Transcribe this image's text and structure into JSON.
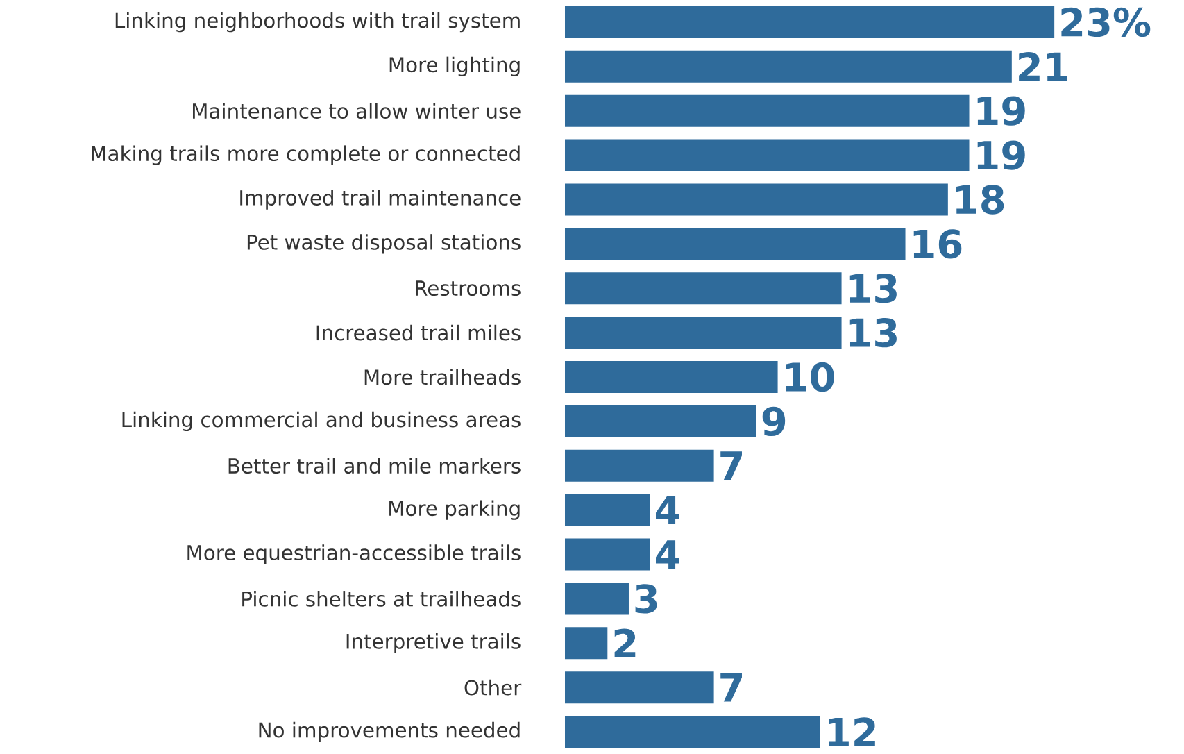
{
  "chart_data": {
    "type": "bar",
    "orientation": "horizontal",
    "categories": [
      "Linking neighborhoods with trail system",
      "More lighting",
      "Maintenance to allow winter use",
      "Making trails more complete or connected",
      "Improved trail maintenance",
      "Pet waste disposal stations",
      "Restrooms",
      "Increased trail miles",
      "More trailheads",
      "Linking commercial and business areas",
      "Better trail and mile markers",
      "More parking",
      "More equestrian-accessible trails",
      "Picnic shelters at trailheads",
      "Interpretive trails",
      "Other",
      "No improvements needed"
    ],
    "values": [
      23,
      21,
      19,
      19,
      18,
      16,
      13,
      13,
      10,
      9,
      7,
      4,
      4,
      3,
      2,
      7,
      12
    ],
    "value_labels": [
      "23%",
      "21",
      "19",
      "19",
      "18",
      "16",
      "13",
      "13",
      "10",
      "9",
      "7",
      "4",
      "4",
      "3",
      "2",
      "7",
      "12"
    ],
    "color": "#2f6b9b"
  }
}
